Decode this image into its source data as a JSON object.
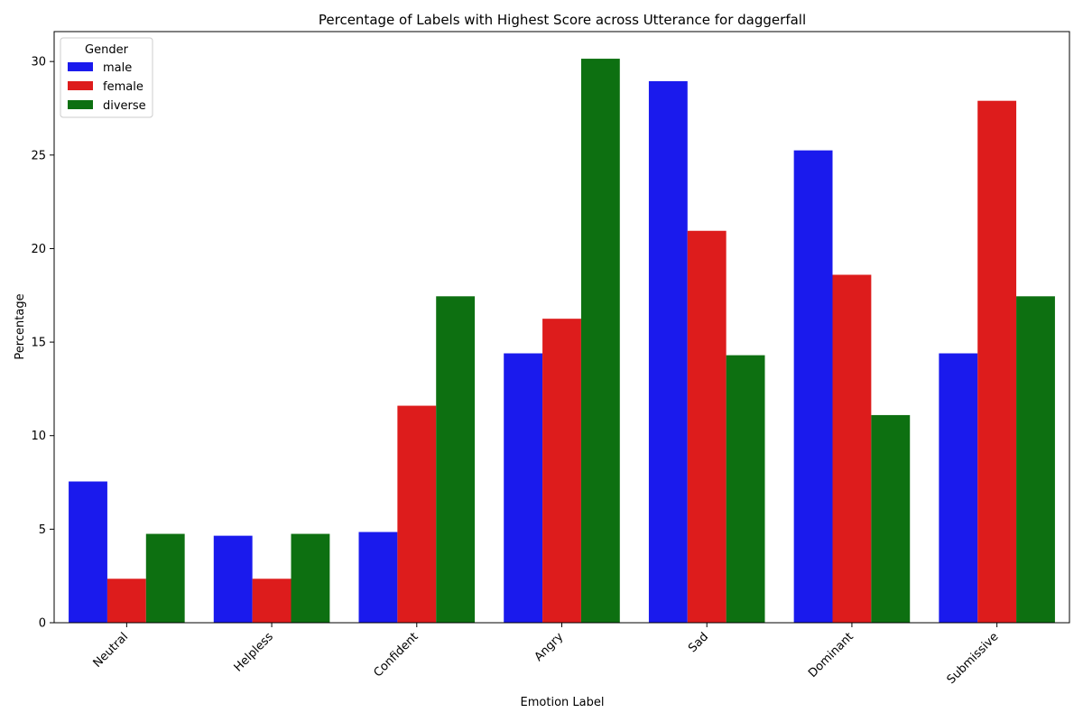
{
  "chart_data": {
    "type": "bar",
    "title": "Percentage of Labels with Highest Score across Utterance for daggerfall",
    "xlabel": "Emotion Label",
    "ylabel": "Percentage",
    "categories": [
      "Neutral",
      "Helpless",
      "Confident",
      "Angry",
      "Sad",
      "Dominant",
      "Submissive"
    ],
    "series": [
      {
        "name": "male",
        "color": "#1a1aed",
        "values": [
          7.55,
          4.65,
          4.85,
          14.4,
          28.95,
          25.25,
          14.4
        ]
      },
      {
        "name": "female",
        "color": "#dd1c1c",
        "values": [
          2.35,
          2.35,
          11.6,
          16.25,
          20.95,
          18.6,
          27.9
        ]
      },
      {
        "name": "diverse",
        "color": "#0d7011",
        "values": [
          4.75,
          4.75,
          17.45,
          30.15,
          14.3,
          11.1,
          17.45
        ]
      }
    ],
    "ylim": [
      0,
      31.6
    ],
    "yticks": [
      0,
      5,
      10,
      15,
      20,
      25,
      30
    ],
    "legend": {
      "title": "Gender",
      "position": "top-left"
    },
    "grid": false
  }
}
